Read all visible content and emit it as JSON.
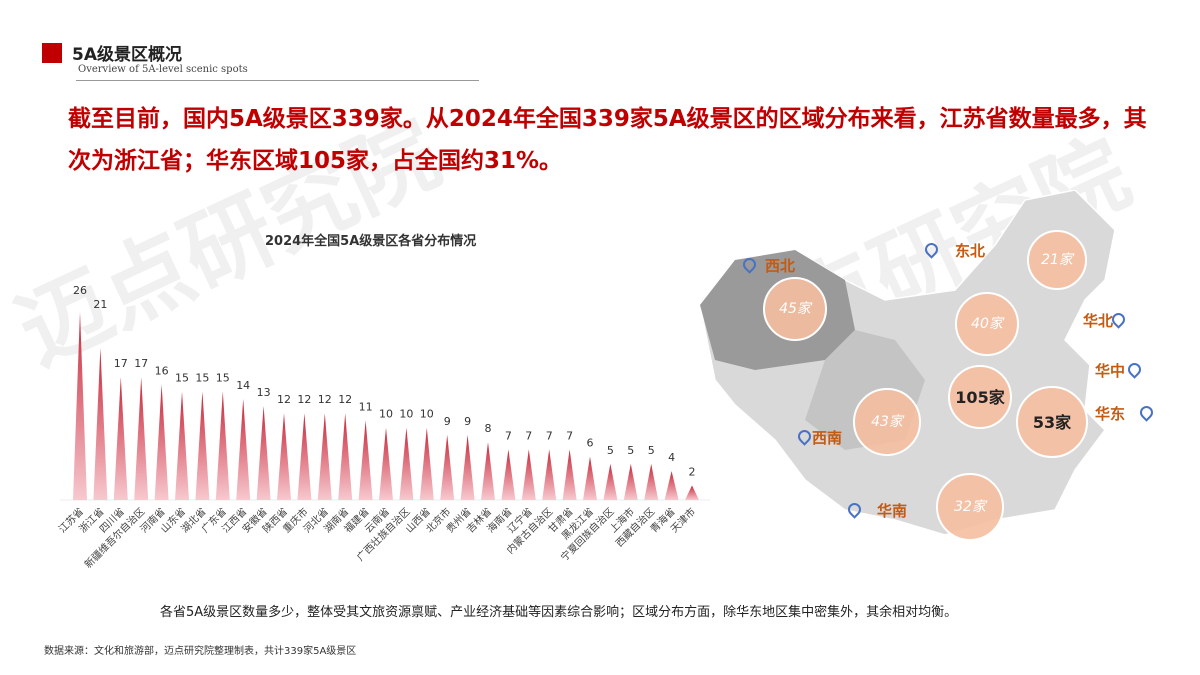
{
  "header": {
    "title": "5A级景区概况",
    "subtitle": "Overview of 5A-level scenic spots"
  },
  "headline": "截至目前，国内5A级景区339家。从2024年全国339家5A级景区的区域分布来看，江苏省数量最多，其次为浙江省；华东区域105家，占全国约31%。",
  "chart_data": {
    "type": "bar",
    "title": "2024年全国5A级景区各省分布情况",
    "xlabel": "",
    "ylabel": "",
    "categories": [
      "江苏省",
      "浙江省",
      "四川省",
      "新疆维吾尔自治区",
      "河南省",
      "山东省",
      "湖北省",
      "广东省",
      "江西省",
      "安徽省",
      "陕西省",
      "重庆市",
      "河北省",
      "湖南省",
      "福建省",
      "云南省",
      "广西壮族自治区",
      "山西省",
      "北京市",
      "贵州省",
      "吉林省",
      "海南省",
      "辽宁省",
      "内蒙古自治区",
      "甘肃省",
      "黑龙江省",
      "宁夏回族自治区",
      "上海市",
      "西藏自治区",
      "青海省",
      "天津市"
    ],
    "values": [
      26,
      21,
      17,
      17,
      16,
      15,
      15,
      15,
      14,
      13,
      12,
      12,
      12,
      12,
      11,
      10,
      10,
      10,
      9,
      9,
      8,
      7,
      7,
      7,
      7,
      6,
      5,
      5,
      5,
      4,
      2
    ],
    "color": "#e05060",
    "grid": false
  },
  "map": {
    "regions": [
      {
        "name": "西北",
        "count": "45",
        "unit": "家"
      },
      {
        "name": "东北",
        "count": "21",
        "unit": "家"
      },
      {
        "name": "华北",
        "count": "40家",
        "unit": ""
      },
      {
        "name": "华中",
        "count": "43",
        "unit": "家"
      },
      {
        "name": "华东",
        "count": "105家",
        "unit": ""
      },
      {
        "name": "西南",
        "count": "53",
        "unit": "家"
      },
      {
        "name": "华南",
        "count": "32",
        "unit": "家"
      }
    ]
  },
  "footnote": "各省5A级景区数量多少，整体受其文旅资源禀赋、产业经济基础等因素综合影响；区域分布方面，除华东地区集中密集外，其余相对均衡。",
  "source": "数据来源：文化和旅游部，迈点研究院整理制表，共计339家5A级景区",
  "watermark": "迈点研究院"
}
